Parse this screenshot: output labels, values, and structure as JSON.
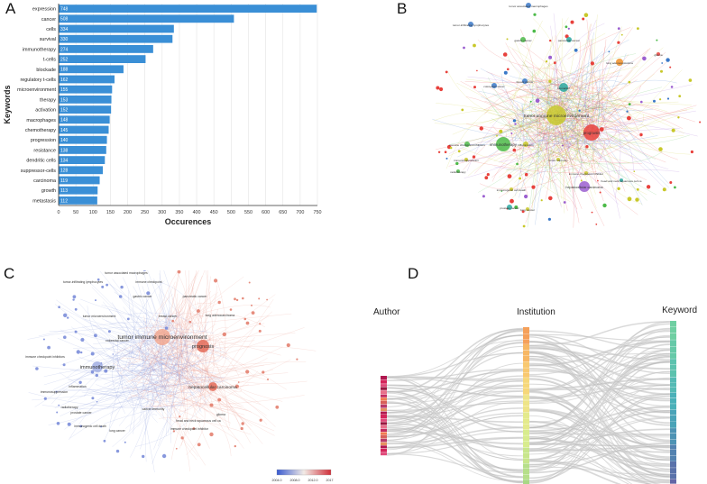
{
  "panels": {
    "a": "A",
    "b": "B",
    "c": "C",
    "d": "D"
  },
  "chart_data": {
    "type": "bar",
    "orientation": "horizontal",
    "title": "",
    "xlabel": "Occurences",
    "ylabel": "Keywords",
    "xlim": [
      0,
      750
    ],
    "xticks": [
      0,
      50,
      100,
      150,
      200,
      250,
      300,
      350,
      400,
      450,
      500,
      550,
      600,
      650,
      700,
      750
    ],
    "categories": [
      "expression",
      "cancer",
      "cells",
      "survival",
      "immunotherapy",
      "t-cells",
      "blockade",
      "regulatory t-cells",
      "microenvironment",
      "therapy",
      "activation",
      "macrophages",
      "chemotherapy",
      "progression",
      "resistance",
      "dendritic cells",
      "suppressor-cells",
      "carcinoma",
      "growth",
      "metastasis"
    ],
    "values": [
      748,
      508,
      334,
      330,
      274,
      252,
      188,
      162,
      155,
      153,
      152,
      148,
      145,
      140,
      138,
      134,
      128,
      119,
      113,
      112
    ],
    "bar_color": "#3a8fd6"
  },
  "network_b": {
    "labels": [
      "tumor immune microenvironment",
      "immunotherapy",
      "prognosis",
      "hepatocellular carcinoma",
      "lung adenocarcinoma",
      "gastric cancer",
      "breast cancer",
      "pancreatic cancer",
      "colorectal cancer",
      "tumor-infiltrating lymphocytes",
      "tumor associated macrophages",
      "immune checkpoint inhibitors",
      "prostate cancer",
      "lung cancer",
      "immunogenic cell death",
      "head and neck squamous cell ca",
      "radiotherapy",
      "immunosuppression",
      "inflammation",
      "biomarker",
      "glioma",
      "tumor immunity",
      "immune checkpoint inhibitor"
    ],
    "colors": {
      "red": "#e8413c",
      "yellow": "#c8c82a",
      "green": "#4cba48",
      "blue": "#3a78c8",
      "purple": "#9b5fd0",
      "teal": "#2aa8a0",
      "orange": "#f0902a"
    }
  },
  "network_c": {
    "labels": [
      "tumor associated macrophages",
      "tumor-infiltrating lymphocytes",
      "immune checkpoint",
      "gastric cancer",
      "pancreatic cancer",
      "lung adenocarcinoma",
      "breast cancer",
      "colorectal cancer",
      "tumor microenvironment",
      "tumor immune microenvironment",
      "prognosis",
      "immunotherapy",
      "hepatocellular carcinoma",
      "inflammation",
      "immunosuppression",
      "radiotherapy",
      "prostate cancer",
      "immune checkpoint inhibitor",
      "immunogenic cell death",
      "lung cancer",
      "head and neck squamous cell ca",
      "cancer immunity",
      "immune checkpoint inhibitors",
      "glioma"
    ],
    "colorbar_ticks": [
      "2004.0",
      "2008.0",
      "2012.0",
      "2017.0"
    ]
  },
  "sankey_d": {
    "columns": [
      "Author",
      "Institution",
      "Keyword"
    ]
  }
}
